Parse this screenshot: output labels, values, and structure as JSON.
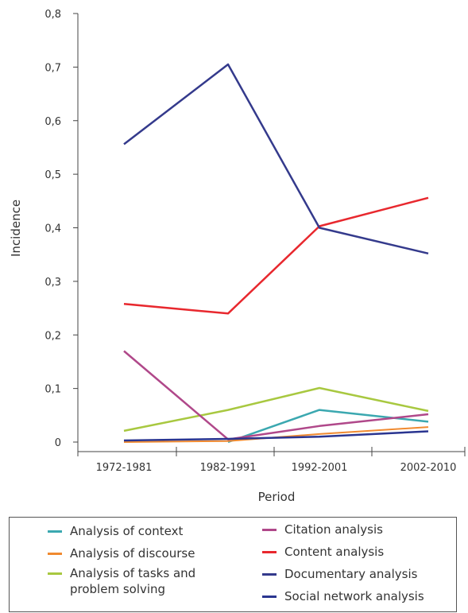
{
  "chart_data": {
    "type": "line",
    "categories": [
      "1972-1981",
      "1982-1991",
      "1992-2001",
      "2002-2010"
    ],
    "xlabel": "Period",
    "ylabel": "Incidence",
    "ylim": [
      0,
      0.8
    ],
    "yticks": [
      "0",
      "0,1",
      "0,2",
      "0,3",
      "0,4",
      "0,5",
      "0,6",
      "0,7",
      "0,8"
    ],
    "legend_position": "bottom",
    "series": [
      {
        "name": "Analysis of context",
        "color": "#3ba8b0",
        "values": [
          null,
          0.0,
          0.06,
          0.038
        ]
      },
      {
        "name": "Analysis of discourse",
        "color": "#f08a30",
        "values": [
          0.0,
          0.002,
          0.015,
          0.028
        ]
      },
      {
        "name": "Analysis of tasks and\nproblem solving",
        "color": "#a8c840",
        "values": [
          0.021,
          0.06,
          0.101,
          0.058
        ]
      },
      {
        "name": "Citation analysis",
        "color": "#b0488a",
        "values": [
          0.17,
          0.005,
          0.03,
          0.052
        ]
      },
      {
        "name": "Content analysis",
        "color": "#e8282e",
        "values": [
          0.258,
          0.24,
          0.403,
          0.456
        ]
      },
      {
        "name": "Documentary analysis",
        "color": "#343a8c",
        "values": [
          0.556,
          0.705,
          0.4,
          0.352
        ]
      },
      {
        "name": "Social network analysis",
        "color": "#2a3590",
        "values": [
          0.003,
          0.006,
          0.01,
          0.02
        ]
      }
    ]
  }
}
